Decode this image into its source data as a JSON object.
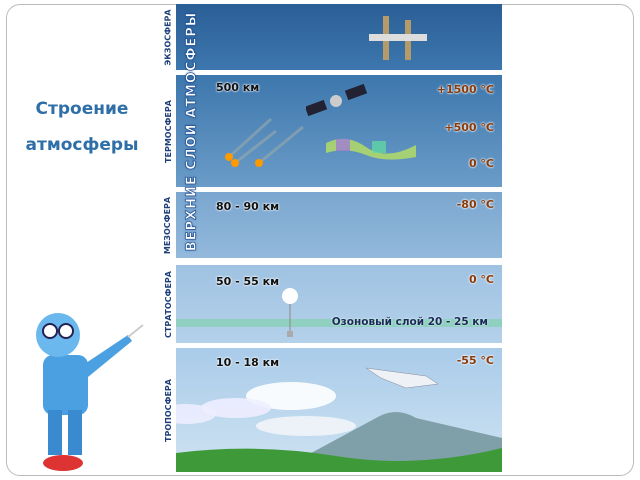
{
  "slide_title": [
    "Строение",
    "атмосферы"
  ],
  "side_labels": [
    "ЭКЗОСФЕРА",
    "ТЕРМОСФЕРА",
    "МЕЗОСФЕРА",
    "СТРАТОСФЕРА",
    "ТРОПОСФЕРА"
  ],
  "vertical_heading": "ВЕРХНИЕ СЛОИ АТМОСФЕРЫ",
  "thermosphere": {
    "altitude": "500 км",
    "temps": [
      "+1500 °C",
      "+500 °C",
      "0 °C"
    ]
  },
  "mesosphere": {
    "altitude": "80 - 90 км",
    "temp": "-80 °C"
  },
  "stratosphere": {
    "altitude": "50 - 55 км",
    "temp": "0 °C",
    "ozone": "Озоновый слой 20 - 25 км"
  },
  "troposphere": {
    "altitude": "10 - 18 км",
    "temp": "-55 °C"
  },
  "colors": {
    "title": "#2e6fa8",
    "temperature": "#8a3a0a",
    "ozone": "#8fd0c0"
  }
}
